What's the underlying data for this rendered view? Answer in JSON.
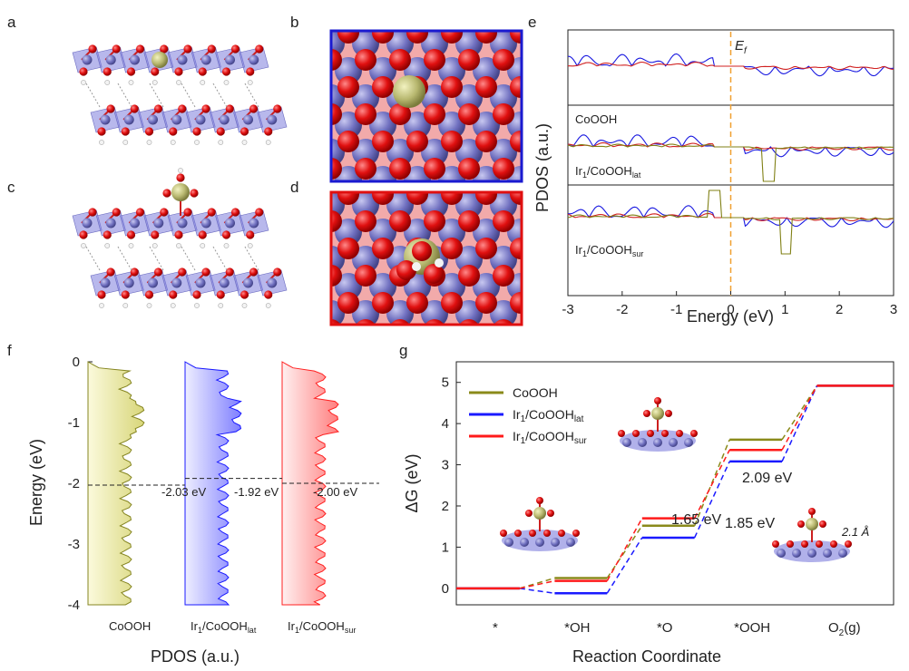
{
  "panels": {
    "a": "a",
    "b": "b",
    "c": "c",
    "d": "d",
    "e": "e",
    "f": "f",
    "g": "g"
  },
  "panel_e": {
    "ylabel": "PDOS (a.u.)",
    "xlabel": "Energy (eV)",
    "ef_label": "E",
    "ef_sub": "f",
    "xticks": [
      "-3",
      "-2",
      "-1",
      "0",
      "1",
      "2",
      "3"
    ],
    "xlim": [
      -3,
      3
    ],
    "subplots": [
      {
        "name": "CoOOH",
        "sub": ""
      },
      {
        "name": "Ir",
        "one": "1",
        "mid": "/CoOOH",
        "sub": "lat"
      },
      {
        "name": "Ir",
        "one": "1",
        "mid": "/CoOOH",
        "sub": "sur"
      }
    ]
  },
  "panel_f": {
    "ylabel": "Energy (eV)",
    "xlabel": "PDOS (a.u.)",
    "yticks": [
      "0",
      "-1",
      "-2",
      "-3",
      "-4"
    ],
    "ylim": [
      -4,
      0
    ],
    "columns": [
      {
        "label": "CoOOH",
        "one": "",
        "mid": "",
        "sub": "",
        "dband": -2.03,
        "dband_text": "-2.03 eV",
        "color": "#858520",
        "fill": "#f2f0b0"
      },
      {
        "label": "Ir",
        "one": "1",
        "mid": "/CoOOH",
        "sub": "lat",
        "dband": -1.92,
        "dband_text": "-1.92 eV",
        "color": "#1a1aff",
        "fill": "#b3b3ff"
      },
      {
        "label": "Ir",
        "one": "1",
        "mid": "/CoOOH",
        "sub": "sur",
        "dband": -2.0,
        "dband_text": "-2.00 eV",
        "color": "#ff2020",
        "fill": "#ffb3b3"
      }
    ]
  },
  "chart_data": {
    "type": "line",
    "ylabel": "ΔG (eV)",
    "xlabel": "Reaction Coordinate",
    "categories": [
      "*",
      "*OH",
      "*O",
      "*OOH",
      "O2(g)"
    ],
    "ylim": [
      -0.4,
      5.5
    ],
    "yticks": [
      "0",
      "1",
      "2",
      "3",
      "4",
      "5"
    ],
    "series": [
      {
        "name": "CoOOH",
        "color": "#8a8a1a",
        "values": [
          0,
          0.25,
          1.52,
          3.61,
          4.92
        ]
      },
      {
        "name": "Ir1/CoOOHlat",
        "color": "#1a1aff",
        "values": [
          0,
          -0.12,
          1.23,
          3.08,
          4.92
        ]
      },
      {
        "name": "Ir1/CoOOHsur",
        "color": "#ff1a1a",
        "values": [
          0,
          0.18,
          1.7,
          3.36,
          4.92
        ]
      }
    ],
    "legend": [
      {
        "name": "CoOOH",
        "one": "",
        "mid": "",
        "sub": ""
      },
      {
        "name": "Ir",
        "one": "1",
        "mid": "/CoOOH",
        "sub": "lat"
      },
      {
        "name": "Ir",
        "one": "1",
        "mid": "/CoOOH",
        "sub": "sur"
      }
    ],
    "annotations": [
      {
        "text": "1.65 eV",
        "color": "#ff1a1a"
      },
      {
        "text": "2.09 eV",
        "color": "#8a8a1a"
      },
      {
        "text": "1.85 eV",
        "color": "#1a1aff"
      },
      {
        "text": "2.1 Å",
        "color": "#e02020"
      }
    ],
    "last_tick": {
      "main": "O",
      "sub": "2",
      "rest": "(g)"
    }
  }
}
